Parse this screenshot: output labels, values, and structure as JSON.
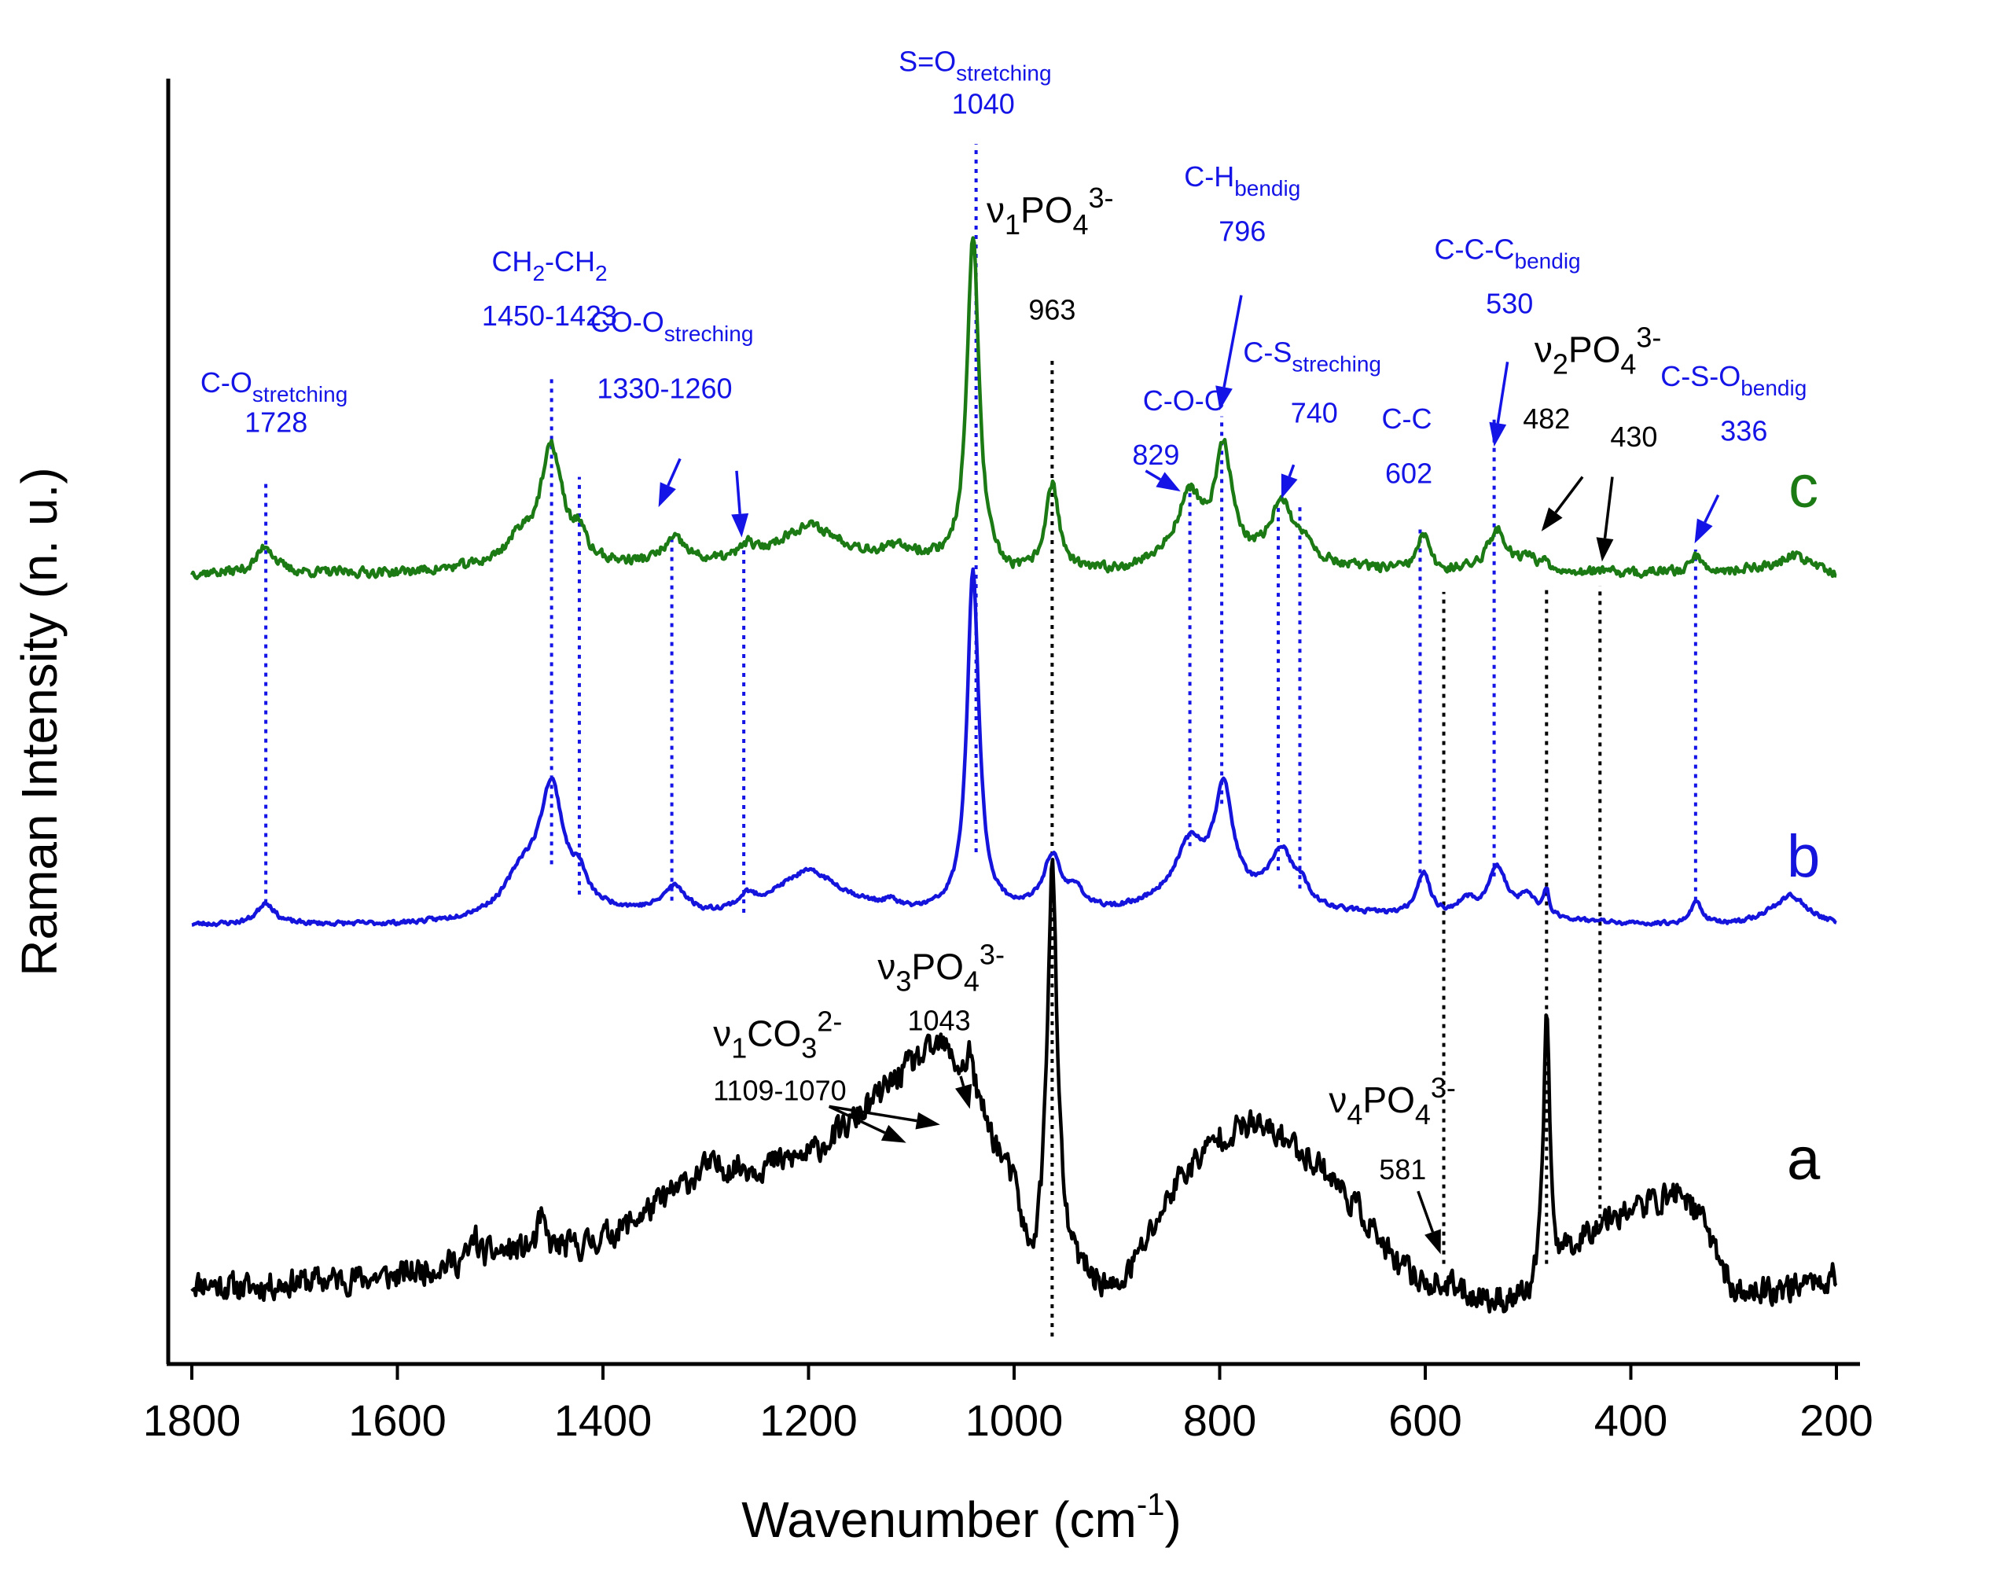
{
  "chart_data": {
    "type": "line",
    "title": "",
    "xlabel": "Wavenumber (cm",
    "xlabel_sup": "-1",
    "xlabel_end": ")",
    "ylabel": "Raman Intensity (n. u.)",
    "xlim": [
      1800,
      200
    ],
    "ylim": [
      0,
      100
    ],
    "x_ticks": [
      1800,
      1600,
      1400,
      1200,
      1000,
      800,
      600,
      400,
      200
    ],
    "x_tick_labels": [
      "1800",
      "1600",
      "1400",
      "1200",
      "1000",
      "800",
      "600",
      "400",
      "200"
    ],
    "colors": {
      "a": "#000000",
      "b": "#1414dc",
      "c": "#1c7a14",
      "blue_label": "#1414e6",
      "black_label": "#000000"
    },
    "series": [
      {
        "name": "a",
        "label": "a",
        "color": "#000000",
        "noise": 1.6,
        "seed": 11,
        "baseline": [
          [
            1800,
            4.5
          ],
          [
            1750,
            4.0
          ],
          [
            1700,
            4.5
          ],
          [
            1600,
            5.0
          ],
          [
            1500,
            7.0
          ],
          [
            1420,
            7.5
          ],
          [
            1380,
            9.0
          ],
          [
            1330,
            12.0
          ],
          [
            1300,
            14.0
          ],
          [
            1250,
            14.0
          ],
          [
            1200,
            15.0
          ],
          [
            1160,
            17.5
          ],
          [
            1130,
            20.0
          ],
          [
            1100,
            22.5
          ],
          [
            1070,
            24.0
          ],
          [
            1040,
            20.0
          ],
          [
            1000,
            12.0
          ],
          [
            985,
            5.0
          ],
          [
            960,
            5.0
          ],
          [
            940,
            5.0
          ],
          [
            900,
            3.5
          ],
          [
            870,
            8.0
          ],
          [
            840,
            13.0
          ],
          [
            800,
            16.5
          ],
          [
            770,
            17.5
          ],
          [
            740,
            16.5
          ],
          [
            700,
            14.0
          ],
          [
            660,
            10.0
          ],
          [
            630,
            6.0
          ],
          [
            600,
            4.5
          ],
          [
            570,
            4.0
          ],
          [
            540,
            3.0
          ],
          [
            500,
            3.0
          ],
          [
            480,
            5.0
          ],
          [
            450,
            8.0
          ],
          [
            420,
            10.0
          ],
          [
            380,
            11.0
          ],
          [
            350,
            12.0
          ],
          [
            320,
            8.0
          ],
          [
            300,
            3.5
          ],
          [
            250,
            4.0
          ],
          [
            200,
            5.0
          ]
        ],
        "peaks": [
          [
            963,
            34,
            6
          ],
          [
            482,
            23,
            3.5
          ],
          [
            1460,
            2.5,
            4
          ],
          [
            1525,
            2.0,
            3
          ],
          [
            1043,
            3,
            4
          ]
        ]
      },
      {
        "name": "b",
        "label": "b",
        "color": "#1414dc",
        "noise": 0.25,
        "seed": 23,
        "baseline": [
          [
            1800,
            34.0
          ],
          [
            1600,
            34.0
          ],
          [
            1550,
            34.2
          ],
          [
            1500,
            34.8
          ],
          [
            1470,
            35.5
          ],
          [
            1400,
            35.0
          ],
          [
            1300,
            34.5
          ],
          [
            1200,
            35.5
          ],
          [
            1100,
            34.8
          ],
          [
            1000,
            35.0
          ],
          [
            900,
            35.0
          ],
          [
            860,
            35.5
          ],
          [
            800,
            36.0
          ],
          [
            700,
            35.0
          ],
          [
            600,
            34.5
          ],
          [
            500,
            34.5
          ],
          [
            400,
            34.0
          ],
          [
            300,
            34.0
          ],
          [
            260,
            34.8
          ],
          [
            240,
            35.0
          ],
          [
            200,
            34.0
          ]
        ],
        "peaks": [
          [
            1728,
            1.8,
            10
          ],
          [
            1450,
            9.8,
            14
          ],
          [
            1423,
            2.0,
            8
          ],
          [
            1480,
            2.5,
            18
          ],
          [
            1330,
            2.2,
            14
          ],
          [
            1260,
            0.9,
            8
          ],
          [
            1200,
            2.8,
            38
          ],
          [
            1120,
            0.5,
            8
          ],
          [
            1040,
            28,
            7
          ],
          [
            963,
            4.4,
            10
          ],
          [
            940,
            1.6,
            8
          ],
          [
            829,
            4.6,
            18
          ],
          [
            796,
            8.6,
            11
          ],
          [
            740,
            4.4,
            14
          ],
          [
            720,
            1.2,
            8
          ],
          [
            602,
            3.6,
            8
          ],
          [
            560,
            1.2,
            10
          ],
          [
            530,
            4.0,
            11
          ],
          [
            500,
            1.6,
            10
          ],
          [
            482,
            2.0,
            3
          ],
          [
            336,
            1.8,
            7
          ],
          [
            245,
            1.4,
            16
          ]
        ]
      },
      {
        "name": "c",
        "label": "c",
        "color": "#1c7a14",
        "noise": 0.55,
        "seed": 37,
        "baseline": [
          [
            1800,
            63.0
          ],
          [
            1600,
            63.0
          ],
          [
            1550,
            63.2
          ],
          [
            1500,
            63.5
          ],
          [
            1400,
            63.5
          ],
          [
            1300,
            63.5
          ],
          [
            1200,
            64.0
          ],
          [
            1100,
            63.8
          ],
          [
            1060,
            63.5
          ],
          [
            1000,
            62.5
          ],
          [
            900,
            63.0
          ],
          [
            860,
            63.5
          ],
          [
            800,
            63.5
          ],
          [
            700,
            63.5
          ],
          [
            600,
            63.0
          ],
          [
            500,
            63.2
          ],
          [
            400,
            63.0
          ],
          [
            300,
            63.2
          ],
          [
            240,
            63.7
          ],
          [
            200,
            63.0
          ]
        ],
        "peaks": [
          [
            1728,
            2.3,
            10
          ],
          [
            1450,
            9.5,
            13
          ],
          [
            1423,
            2.0,
            7
          ],
          [
            1480,
            2.0,
            16
          ],
          [
            1330,
            2.0,
            14
          ],
          [
            1260,
            1.0,
            7
          ],
          [
            1200,
            2.8,
            38
          ],
          [
            1110,
            0.8,
            20
          ],
          [
            1040,
            27.5,
            7
          ],
          [
            963,
            7.4,
            8
          ],
          [
            829,
            5.6,
            16
          ],
          [
            796,
            9.0,
            10
          ],
          [
            740,
            5.2,
            13
          ],
          [
            715,
            1.5,
            8
          ],
          [
            602,
            3.0,
            7
          ],
          [
            530,
            3.3,
            12
          ],
          [
            500,
            1.0,
            8
          ],
          [
            482,
            0.8,
            3
          ],
          [
            336,
            1.3,
            7
          ],
          [
            240,
            0.8,
            15
          ]
        ]
      }
    ],
    "guides": [
      {
        "x": 1728,
        "from": 35.8,
        "to": 70.5,
        "color": "blue"
      },
      {
        "x": 1450,
        "from": 39.0,
        "to": 79.5,
        "color": "blue"
      },
      {
        "x": 1423,
        "from": 36.5,
        "to": 71.0,
        "color": "blue"
      },
      {
        "x": 1333,
        "from": 36.0,
        "to": 66.0,
        "color": "blue"
      },
      {
        "x": 1263,
        "from": 35.0,
        "to": 65.0,
        "color": "blue"
      },
      {
        "x": 1037,
        "from": 40.0,
        "to": 98.5,
        "color": "blue"
      },
      {
        "x": 963,
        "from": 0.0,
        "to": 81.0,
        "color": "black"
      },
      {
        "x": 829,
        "from": 40.5,
        "to": 70.0,
        "color": "blue"
      },
      {
        "x": 798,
        "from": 44.0,
        "to": 76.0,
        "color": "blue"
      },
      {
        "x": 743,
        "from": 38.5,
        "to": 69.0,
        "color": "blue"
      },
      {
        "x": 722,
        "from": 37.0,
        "to": 68.5,
        "color": "blue"
      },
      {
        "x": 605,
        "from": 37.5,
        "to": 67.0,
        "color": "blue"
      },
      {
        "x": 582,
        "from": 6.0,
        "to": 61.5,
        "color": "black"
      },
      {
        "x": 533,
        "from": 38.0,
        "to": 76.0,
        "color": "blue"
      },
      {
        "x": 482,
        "from": 6.0,
        "to": 62.0,
        "color": "black"
      },
      {
        "x": 430,
        "from": 9.0,
        "to": 62.0,
        "color": "black"
      },
      {
        "x": 337,
        "from": 36.0,
        "to": 65.0,
        "color": "blue"
      }
    ],
    "arrows": [
      {
        "from": [
          1325,
          72.5
        ],
        "to": [
          1346,
          68.5
        ],
        "color": "blue"
      },
      {
        "from": [
          1270,
          71.5
        ],
        "to": [
          1265,
          66.0
        ],
        "color": "blue"
      },
      {
        "from": [
          872,
          71.5
        ],
        "to": [
          838,
          69.8
        ],
        "color": "blue"
      },
      {
        "from": [
          779,
          86.0
        ],
        "to": [
          800,
          76.5
        ],
        "color": "blue"
      },
      {
        "from": [
          728,
          72.0
        ],
        "to": [
          740,
          69.2
        ],
        "color": "blue"
      },
      {
        "from": [
          520,
          80.5
        ],
        "to": [
          533,
          73.5
        ],
        "color": "blue"
      },
      {
        "from": [
          315,
          69.5
        ],
        "to": [
          338,
          65.5
        ],
        "color": "blue"
      },
      {
        "from": [
          447,
          71.0
        ],
        "to": [
          487,
          66.5
        ],
        "color": "black"
      },
      {
        "from": [
          418,
          71.0
        ],
        "to": [
          428,
          64.0
        ],
        "color": "black"
      },
      {
        "from": [
          1180,
          19.0
        ],
        "to": [
          1105,
          16.0
        ],
        "color": "black"
      },
      {
        "from": [
          1180,
          19.0
        ],
        "to": [
          1072,
          17.5
        ],
        "color": "black"
      },
      {
        "from": [
          1052,
          21.5
        ],
        "to": [
          1043,
          18.8
        ],
        "color": "black"
      },
      {
        "from": [
          607,
          12.0
        ],
        "to": [
          585,
          6.8
        ],
        "color": "black"
      }
    ],
    "annotations": [
      {
        "id": "c_o",
        "color": "blue",
        "pos": [
          1720,
          78.0
        ],
        "anchor": "middle",
        "size": 36,
        "text": "C-O",
        "sub": "stretching",
        "value": "1728",
        "vpos": [
          1718,
          74.7
        ]
      },
      {
        "id": "ch2",
        "color": "blue",
        "pos": [
          1452,
          88.0
        ],
        "anchor": "middle",
        "size": 36,
        "text": "CH",
        "sub": "2",
        "text2": "-CH",
        "sub2": "2",
        "value": "1450-1423",
        "vpos": [
          1452,
          83.5
        ]
      },
      {
        "id": "co_o",
        "color": "blue",
        "pos": [
          1333,
          83.0
        ],
        "anchor": "middle",
        "size": 36,
        "text": "CO-O",
        "sub": "streching",
        "value": "1330-1260",
        "vpos": [
          1340,
          77.5
        ]
      },
      {
        "id": "s_o",
        "color": "blue",
        "pos": [
          1038,
          104.5
        ],
        "anchor": "middle",
        "size": 36,
        "text": "S=O",
        "sub": "stretching",
        "value": "1040",
        "vpos": [
          1030,
          101.0
        ]
      },
      {
        "id": "v1po4",
        "color": "black",
        "pos": [
          965,
          92.0
        ],
        "anchor": "middle",
        "size": 46,
        "nu": true,
        "text": "PO",
        "nusub": "1",
        "sub": "4",
        "sup": "3-",
        "value": "963",
        "vpos": [
          963,
          84.0
        ],
        "vsize": 36
      },
      {
        "id": "c_h",
        "color": "blue",
        "pos": [
          778,
          95.0
        ],
        "anchor": "middle",
        "size": 36,
        "text": "C-H",
        "sub": "bendig",
        "value": "796",
        "vpos": [
          778,
          90.5
        ]
      },
      {
        "id": "c_o_c",
        "color": "blue",
        "pos": [
          835,
          76.5
        ],
        "anchor": "middle",
        "size": 36,
        "text": "C-O-C",
        "value": "829",
        "vpos": [
          862,
          72.0
        ]
      },
      {
        "id": "c_s",
        "color": "blue",
        "pos": [
          710,
          80.5
        ],
        "anchor": "middle",
        "size": 36,
        "text": "C-S",
        "sub": "streching",
        "value": "740",
        "vpos": [
          708,
          75.5
        ]
      },
      {
        "id": "c_c",
        "color": "blue",
        "pos": [
          618,
          75.0
        ],
        "anchor": "middle",
        "size": 36,
        "text": "C-C",
        "value": "602",
        "vpos": [
          616,
          70.5
        ]
      },
      {
        "id": "c_c_c",
        "color": "blue",
        "pos": [
          520,
          89.0
        ],
        "anchor": "middle",
        "size": 36,
        "text": "C-C-C",
        "sub": "bendig",
        "value": "530",
        "vpos": [
          518,
          84.5
        ]
      },
      {
        "id": "v2po4",
        "color": "black",
        "pos": [
          432,
          80.5
        ],
        "anchor": "middle",
        "size": 46,
        "nu": true,
        "text": "PO",
        "nusub": "2",
        "sub": "4",
        "sup": "3-",
        "value": "482",
        "vpos": [
          482,
          75.0
        ],
        "vsize": 36,
        "value2": "430",
        "vpos2": [
          397,
          73.5
        ]
      },
      {
        "id": "c_s_o",
        "color": "blue",
        "pos": [
          300,
          78.5
        ],
        "anchor": "middle",
        "size": 36,
        "text": "C-S-O",
        "sub": "bendig",
        "value": "336",
        "vpos": [
          290,
          74.0
        ]
      },
      {
        "id": "v3po4",
        "color": "black",
        "pos": [
          1071,
          29.5
        ],
        "anchor": "middle",
        "size": 46,
        "nu": true,
        "text": "PO",
        "nusub": "3",
        "sub": "4",
        "sup": "3-",
        "value": "1043",
        "vpos": [
          1073,
          25.3
        ],
        "vsize": 36
      },
      {
        "id": "v1co3",
        "color": "black",
        "pos": [
          1230,
          24.0
        ],
        "anchor": "middle",
        "size": 46,
        "nu": true,
        "text": "CO",
        "nusub": "1",
        "sub": "3",
        "sup": "2-",
        "value": "1109-1070",
        "vpos": [
          1228,
          19.5
        ],
        "vsize": 36
      },
      {
        "id": "v4po4",
        "color": "black",
        "pos": [
          632,
          18.5
        ],
        "anchor": "middle",
        "size": 46,
        "nu": true,
        "text": "PO",
        "nusub": "4",
        "sub": "4",
        "sup": "3-",
        "value": "581",
        "vpos": [
          622,
          13.0
        ],
        "vsize": 36
      }
    ],
    "curve_labels": [
      {
        "text": "c",
        "color": "#1c7a14",
        "pos": [
          232,
          68.5
        ]
      },
      {
        "text": "b",
        "color": "#1414dc",
        "pos": [
          232,
          38.0
        ]
      },
      {
        "text": "a",
        "color": "#000000",
        "pos": [
          232,
          13.0
        ]
      }
    ]
  }
}
